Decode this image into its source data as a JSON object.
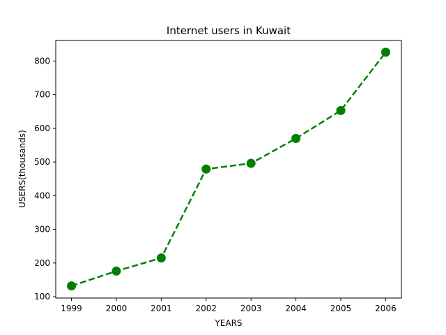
{
  "chart_data": {
    "type": "line",
    "title": "Internet users in Kuwait",
    "xlabel": "YEARS",
    "ylabel": "USERS(thousands)",
    "x": [
      1999,
      2000,
      2001,
      2002,
      2003,
      2004,
      2005,
      2006
    ],
    "series": [
      {
        "values": [
          132,
          176,
          215,
          479,
          496,
          570,
          653,
          826
        ],
        "color": "#008000",
        "line_style": "dashed",
        "marker": "circle"
      }
    ],
    "xlim": [
      1998.65,
      2006.35
    ],
    "ylim": [
      96,
      861
    ],
    "xticks": [
      "1999",
      "2000",
      "2001",
      "2002",
      "2003",
      "2004",
      "2005",
      "2006"
    ],
    "yticks": [
      "100",
      "200",
      "300",
      "400",
      "500",
      "600",
      "700",
      "800"
    ],
    "grid": false,
    "legend": false
  }
}
